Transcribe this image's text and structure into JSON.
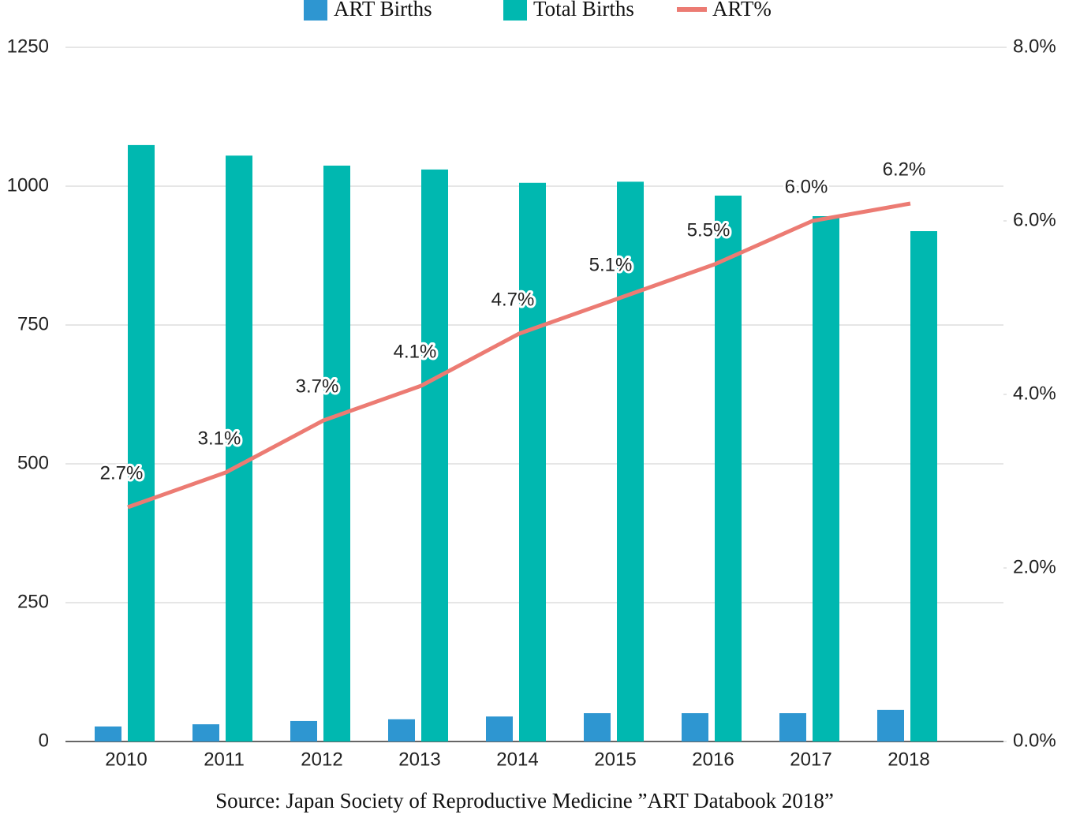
{
  "chart_data": {
    "type": "bar-line",
    "categories": [
      "2010",
      "2011",
      "2012",
      "2013",
      "2014",
      "2015",
      "2016",
      "2017",
      "2018"
    ],
    "series": [
      {
        "name": "ART Births",
        "type": "bar",
        "color": "#2e96d1",
        "values": [
          27,
          31,
          37,
          40,
          45,
          51,
          51,
          51,
          57
        ]
      },
      {
        "name": "Total Births",
        "type": "bar",
        "color": "#00b8b0",
        "values": [
          1074,
          1055,
          1037,
          1030,
          1006,
          1008,
          983,
          946,
          919
        ]
      },
      {
        "name": "ART%",
        "type": "line",
        "axis": "y2",
        "color": "#ec7b73",
        "values": [
          2.7,
          3.1,
          3.7,
          4.1,
          4.7,
          5.1,
          5.5,
          6.0,
          6.2
        ],
        "value_labels": [
          "2.7%",
          "3.1%",
          "3.7%",
          "4.1%",
          "4.7%",
          "5.1%",
          "5.5%",
          "6.0%",
          "6.2%"
        ]
      }
    ],
    "ylim": [
      0,
      1250
    ],
    "yticks": [
      0,
      250,
      500,
      750,
      1000,
      1250
    ],
    "y2lim": [
      0,
      8
    ],
    "y2ticks": [
      {
        "value": 0,
        "label": "0.0%"
      },
      {
        "value": 2,
        "label": "2.0%"
      },
      {
        "value": 4,
        "label": "4.0%"
      },
      {
        "value": 6,
        "label": "6.0%"
      },
      {
        "value": 8,
        "label": "8.0%"
      }
    ],
    "grid": true,
    "legend": "top",
    "source": "Source: Japan Society of Reproductive Medicine ”ART Databook 2018”"
  }
}
